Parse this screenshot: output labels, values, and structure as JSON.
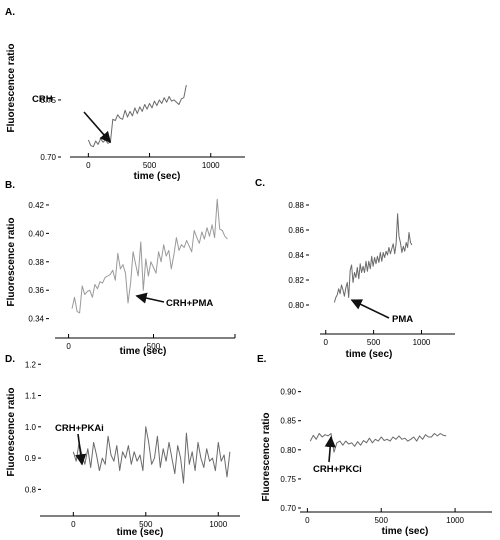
{
  "chart_data": [
    {
      "type": "line",
      "panel": "A.",
      "xlabel": "time (sec)",
      "ylabel": "Fluorescence ratio",
      "xlim": [
        -150,
        1280
      ],
      "ylim": [
        0.7,
        0.785
      ],
      "xticks": [
        0,
        500,
        1000
      ],
      "yticks": [
        0.7,
        0.75
      ],
      "ytick_labels": [
        "0.70",
        "0.75"
      ],
      "annotation": {
        "text": "CRH",
        "at": [
          180,
          0.713
        ]
      },
      "series": [
        {
          "x": [
            0,
            20,
            40,
            60,
            80,
            100,
            120,
            140,
            160,
            180,
            200,
            220,
            240,
            260,
            280,
            300,
            320,
            340,
            360,
            380,
            400,
            420,
            440,
            460,
            480,
            500,
            520,
            540,
            560,
            580,
            600,
            620,
            640,
            660,
            680,
            700,
            720,
            740,
            760,
            780,
            800
          ],
          "y": [
            0.715,
            0.71,
            0.709,
            0.714,
            0.711,
            0.716,
            0.713,
            0.715,
            0.712,
            0.713,
            0.733,
            0.732,
            0.737,
            0.734,
            0.733,
            0.741,
            0.735,
            0.74,
            0.736,
            0.743,
            0.738,
            0.744,
            0.74,
            0.746,
            0.742,
            0.747,
            0.743,
            0.749,
            0.745,
            0.75,
            0.747,
            0.752,
            0.748,
            0.753,
            0.749,
            0.75,
            0.748,
            0.746,
            0.751,
            0.752,
            0.763
          ]
        }
      ]
    },
    {
      "type": "line",
      "panel": "B.",
      "xlabel": "time (sec)",
      "ylabel": "Fluorescence ratio",
      "xlim": [
        -80,
        980
      ],
      "ylim": [
        0.332,
        0.427
      ],
      "xticks": [
        0,
        500,
        null
      ],
      "yticks": [
        0.34,
        0.36,
        0.38,
        0.4,
        0.42
      ],
      "ytick_labels": [
        "0.34",
        "0.36",
        "0.38",
        "0.40",
        "0.42"
      ],
      "annotation": {
        "text": "CRH+PMA",
        "at": [
          400,
          0.356
        ]
      },
      "series": [
        {
          "x": [
            20,
            35,
            50,
            65,
            80,
            95,
            110,
            125,
            140,
            155,
            170,
            185,
            200,
            215,
            230,
            245,
            260,
            275,
            290,
            305,
            320,
            335,
            350,
            365,
            380,
            395,
            410,
            425,
            440,
            455,
            470,
            485,
            500,
            515,
            530,
            545,
            560,
            575,
            590,
            605,
            620,
            635,
            650,
            665,
            680,
            695,
            710,
            725,
            740,
            755,
            770,
            785,
            800,
            815,
            830,
            845,
            860,
            875,
            890,
            905,
            920,
            935
          ],
          "y": [
            0.347,
            0.355,
            0.345,
            0.344,
            0.363,
            0.357,
            0.359,
            0.36,
            0.355,
            0.364,
            0.361,
            0.366,
            0.365,
            0.369,
            0.37,
            0.371,
            0.374,
            0.367,
            0.386,
            0.375,
            0.378,
            0.372,
            0.351,
            0.365,
            0.387,
            0.378,
            0.37,
            0.394,
            0.36,
            0.382,
            0.37,
            0.38,
            0.376,
            0.372,
            0.387,
            0.38,
            0.392,
            0.384,
            0.388,
            0.375,
            0.385,
            0.397,
            0.388,
            0.392,
            0.39,
            0.395,
            0.391,
            0.387,
            0.402,
            0.397,
            0.393,
            0.401,
            0.396,
            0.404,
            0.398,
            0.406,
            0.397,
            0.424,
            0.403,
            0.402,
            0.398,
            0.396
          ]
        }
      ]
    },
    {
      "type": "line",
      "panel": "C.",
      "xlabel": "time (sec)",
      "ylabel": "",
      "xlim": [
        -60,
        1350
      ],
      "ylim": [
        0.78,
        0.888
      ],
      "xticks": [
        0,
        500,
        1000
      ],
      "yticks": [
        0.8,
        0.82,
        0.84,
        0.86,
        0.88
      ],
      "ytick_labels": [
        "0.80",
        "0.82",
        "0.84",
        "0.86",
        "0.88"
      ],
      "annotation": {
        "text": "PMA",
        "at": [
          270,
          0.804
        ]
      },
      "series": [
        {
          "x": [
            90,
            105,
            120,
            135,
            150,
            165,
            180,
            195,
            210,
            225,
            240,
            255,
            270,
            285,
            300,
            315,
            330,
            345,
            360,
            375,
            390,
            405,
            420,
            435,
            450,
            465,
            480,
            495,
            510,
            525,
            540,
            555,
            570,
            585,
            600,
            615,
            630,
            645,
            660,
            675,
            690,
            705,
            720,
            735,
            750,
            765,
            780,
            795,
            810,
            825,
            840,
            855,
            870,
            885,
            900
          ],
          "y": [
            0.802,
            0.806,
            0.808,
            0.813,
            0.809,
            0.816,
            0.812,
            0.807,
            0.814,
            0.818,
            0.806,
            0.828,
            0.832,
            0.818,
            0.826,
            0.822,
            0.83,
            0.821,
            0.833,
            0.826,
            0.831,
            0.826,
            0.835,
            0.827,
            0.835,
            0.829,
            0.839,
            0.831,
            0.838,
            0.833,
            0.839,
            0.834,
            0.842,
            0.835,
            0.842,
            0.838,
            0.843,
            0.84,
            0.846,
            0.841,
            0.845,
            0.849,
            0.841,
            0.849,
            0.873,
            0.855,
            0.85,
            0.842,
            0.847,
            0.843,
            0.85,
            0.846,
            0.858,
            0.85,
            0.848
          ]
        }
      ]
    },
    {
      "type": "line",
      "panel": "D.",
      "xlabel": "time (sec)",
      "ylabel": "Fluorescence ratio",
      "xlim": [
        -230,
        1150
      ],
      "ylim": [
        0.75,
        1.22
      ],
      "xticks": [
        0,
        500,
        1000
      ],
      "yticks": [
        0.8,
        0.9,
        1.0,
        1.1,
        1.2
      ],
      "ytick_labels": [
        "0.8",
        "0.9",
        "1.0",
        "1.1",
        "1.2"
      ],
      "annotation": {
        "text": "CRH+PKAi",
        "at": [
          60,
          0.88
        ]
      },
      "series": [
        {
          "x": [
            0,
            20,
            40,
            60,
            80,
            100,
            120,
            140,
            160,
            180,
            200,
            220,
            240,
            260,
            280,
            300,
            320,
            340,
            360,
            380,
            400,
            420,
            440,
            460,
            480,
            500,
            520,
            540,
            560,
            580,
            600,
            620,
            640,
            660,
            680,
            700,
            720,
            740,
            760,
            780,
            800,
            820,
            840,
            860,
            880,
            900,
            920,
            940,
            960,
            980,
            1000,
            1020,
            1040,
            1060,
            1080
          ],
          "y": [
            0.92,
            0.89,
            0.95,
            0.91,
            0.88,
            0.93,
            0.87,
            0.95,
            0.91,
            0.86,
            0.9,
            0.88,
            0.97,
            0.91,
            0.89,
            0.94,
            0.86,
            0.92,
            0.9,
            0.94,
            0.88,
            0.92,
            0.89,
            0.91,
            0.86,
            1.0,
            0.95,
            0.88,
            0.9,
            0.97,
            0.87,
            0.93,
            0.89,
            0.95,
            0.9,
            0.85,
            0.94,
            0.9,
            0.82,
            0.98,
            0.88,
            0.92,
            0.86,
            0.95,
            0.9,
            0.87,
            0.93,
            0.89,
            0.9,
            0.86,
            0.95,
            0.89,
            0.91,
            0.84,
            0.92
          ]
        }
      ]
    },
    {
      "type": "line",
      "panel": "E.",
      "xlabel": "time (sec)",
      "ylabel": "Fluorescence ratio",
      "xlim": [
        -50,
        1250
      ],
      "ylim": [
        0.7,
        0.92
      ],
      "xticks": [
        0,
        500,
        1000
      ],
      "yticks": [
        0.7,
        0.75,
        0.8,
        0.85,
        0.9
      ],
      "ytick_labels": [
        "0.70",
        "0.75",
        "0.80",
        "0.85",
        "0.90"
      ],
      "annotation": {
        "text": "CRH+PKCi",
        "at": [
          160,
          0.822
        ]
      },
      "series": [
        {
          "x": [
            20,
            40,
            60,
            80,
            100,
            120,
            140,
            160,
            180,
            200,
            220,
            240,
            260,
            280,
            300,
            320,
            340,
            360,
            380,
            400,
            420,
            440,
            460,
            480,
            500,
            520,
            540,
            560,
            580,
            600,
            620,
            640,
            660,
            680,
            700,
            720,
            740,
            760,
            780,
            800,
            820,
            840,
            860,
            880,
            900,
            920,
            940
          ],
          "y": [
            0.815,
            0.825,
            0.818,
            0.828,
            0.822,
            0.826,
            0.824,
            0.828,
            0.796,
            0.812,
            0.815,
            0.808,
            0.815,
            0.81,
            0.812,
            0.806,
            0.814,
            0.808,
            0.816,
            0.812,
            0.82,
            0.812,
            0.818,
            0.815,
            0.822,
            0.816,
            0.818,
            0.815,
            0.822,
            0.818,
            0.824,
            0.818,
            0.82,
            0.815,
            0.818,
            0.822,
            0.815,
            0.824,
            0.818,
            0.826,
            0.822,
            0.822,
            0.828,
            0.824,
            0.828,
            0.825,
            0.824
          ]
        }
      ]
    }
  ]
}
